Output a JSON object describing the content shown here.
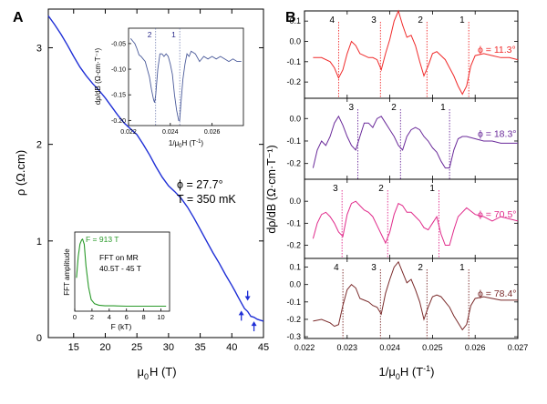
{
  "chart_data": [
    {
      "id": "A",
      "type": "line",
      "panel_letter": "A",
      "xlabel_base": "μ",
      "xlabel_sub": "0",
      "xlabel_rest": "H (T)",
      "ylabel": "ρ (Ω.cm)",
      "xlim": [
        11,
        45
      ],
      "ylim": [
        0,
        3.4
      ],
      "xticks": [
        15,
        20,
        25,
        30,
        35,
        40,
        45
      ],
      "yticks": [
        0,
        1,
        2,
        3
      ],
      "grid": false,
      "annotations": [
        "ϕ = 27.7°",
        "T = 350 mK"
      ],
      "series": [
        {
          "color": "#1f2fd6",
          "x": [
            11,
            12,
            13,
            14,
            15,
            16,
            17,
            18,
            19,
            20,
            21,
            22,
            23,
            24,
            25,
            26,
            27,
            28,
            29,
            30,
            31,
            32,
            33,
            34,
            35,
            36,
            37,
            38,
            39,
            40,
            40.5,
            41,
            41.5,
            42,
            42.5,
            43,
            43.5,
            44,
            44.5,
            45
          ],
          "y": [
            3.33,
            3.24,
            3.14,
            3.03,
            2.91,
            2.8,
            2.71,
            2.63,
            2.56,
            2.48,
            2.39,
            2.3,
            2.22,
            2.16,
            2.1,
            2.0,
            1.89,
            1.77,
            1.66,
            1.57,
            1.51,
            1.44,
            1.35,
            1.24,
            1.12,
            1.0,
            0.88,
            0.77,
            0.65,
            0.54,
            0.48,
            0.42,
            0.36,
            0.3,
            0.27,
            0.22,
            0.21,
            0.19,
            0.18,
            0.17
          ]
        }
      ],
      "arrows": [
        {
          "x": 41.5,
          "y": 0.26,
          "direction": "up"
        },
        {
          "x": 42.5,
          "y": 0.4,
          "direction": "down"
        },
        {
          "x": 43.5,
          "y": 0.15,
          "direction": "up"
        }
      ]
    },
    {
      "id": "A-inset-top",
      "type": "line",
      "xlabel_base": "1/μ",
      "xlabel_sub": "0",
      "xlabel_rest": "H (T",
      "xlabel_sup": "-1",
      "xlabel_tail": ")",
      "ylabel": "dρ/dB (Ω·cm·T⁻¹)",
      "xlim": [
        0.022,
        0.0275
      ],
      "ylim": [
        -0.21,
        -0.02
      ],
      "xticks": [
        "0.022",
        "0.024",
        "0.026"
      ],
      "yticks": [
        "-0.05",
        "-0.10",
        "-0.15",
        "-0.20"
      ],
      "ytick_values": [
        -0.05,
        -0.1,
        -0.15,
        -0.2
      ],
      "xtick_values": [
        0.022,
        0.024,
        0.026
      ],
      "series": [
        {
          "color": "#4a5a9a",
          "x": [
            0.0221,
            0.0222,
            0.0223,
            0.0224,
            0.0225,
            0.0226,
            0.0227,
            0.0228,
            0.0229,
            0.023,
            0.0231,
            0.0232,
            0.02325,
            0.0233,
            0.0234,
            0.0235,
            0.0236,
            0.0237,
            0.0238,
            0.0239,
            0.024,
            0.0241,
            0.0242,
            0.0243,
            0.0244,
            0.02445,
            0.0245,
            0.0246,
            0.0247,
            0.0248,
            0.0249,
            0.025,
            0.0252,
            0.0254,
            0.0256,
            0.0258,
            0.026,
            0.0262,
            0.0264,
            0.0266,
            0.0268,
            0.027,
            0.0272,
            0.0274
          ],
          "y": [
            -0.04,
            -0.045,
            -0.05,
            -0.06,
            -0.072,
            -0.075,
            -0.08,
            -0.085,
            -0.1,
            -0.115,
            -0.14,
            -0.16,
            -0.165,
            -0.15,
            -0.1,
            -0.07,
            -0.07,
            -0.075,
            -0.07,
            -0.075,
            -0.09,
            -0.11,
            -0.15,
            -0.18,
            -0.2,
            -0.2,
            -0.17,
            -0.12,
            -0.09,
            -0.07,
            -0.075,
            -0.065,
            -0.07,
            -0.085,
            -0.075,
            -0.08,
            -0.075,
            -0.08,
            -0.075,
            -0.08,
            -0.085,
            -0.08,
            -0.085,
            -0.085
          ]
        }
      ],
      "markers": [
        {
          "label": "2",
          "x": 0.0233
        },
        {
          "label": "1",
          "x": 0.02445
        }
      ]
    },
    {
      "id": "A-inset-bottom",
      "type": "line",
      "xlabel": "F (kT)",
      "ylabel": "FFT amplitude",
      "xlim": [
        0,
        11
      ],
      "xticks": [
        "0",
        "2",
        "4",
        "6",
        "8",
        "10"
      ],
      "xtick_values": [
        0,
        2,
        4,
        6,
        8,
        10
      ],
      "annotations": [
        "F = 913 T",
        "FFT on MR",
        "40.5T - 45 T"
      ],
      "series": [
        {
          "color": "#2a9a2a",
          "x": [
            0.2,
            0.4,
            0.6,
            0.8,
            0.913,
            1.1,
            1.3,
            1.6,
            1.9,
            2.3,
            2.8,
            3.5,
            4.5,
            6,
            8,
            10,
            10.6
          ],
          "y": [
            0.45,
            0.75,
            0.93,
            0.99,
            1.0,
            0.93,
            0.62,
            0.32,
            0.14,
            0.08,
            0.06,
            0.05,
            0.05,
            0.045,
            0.045,
            0.045,
            0.045
          ]
        }
      ]
    },
    {
      "id": "B",
      "type": "line",
      "panel_letter": "B",
      "xlabel_base": "1/μ",
      "xlabel_sub": "0",
      "xlabel_rest": "H (T",
      "xlabel_sup": "-1",
      "xlabel_tail": ")",
      "ylabel": "dρ/dB (Ω·cm·T⁻¹)",
      "xlim": [
        0.022,
        0.027
      ],
      "xticks": [
        "0.022",
        "0.023",
        "0.024",
        "0.025",
        "0.026",
        "0.027"
      ],
      "xtick_values": [
        0.022,
        0.023,
        0.024,
        0.025,
        0.026,
        0.027
      ],
      "subplots": [
        {
          "annotation": "ϕ = 11.3°",
          "color": "#f02a2a",
          "ylim": [
            -0.28,
            0.15
          ],
          "yticks": [
            "0.1",
            "0.0",
            "-0.1",
            "-0.2"
          ],
          "ytick_values": [
            0.1,
            0.0,
            -0.1,
            -0.2
          ],
          "markers": [
            {
              "label": "4",
              "x": 0.0228
            },
            {
              "label": "3",
              "x": 0.02378
            },
            {
              "label": "2",
              "x": 0.02487
            },
            {
              "label": "1",
              "x": 0.02585
            }
          ],
          "x": [
            0.0222,
            0.0224,
            0.0226,
            0.0227,
            0.0228,
            0.0229,
            0.023,
            0.0231,
            0.0232,
            0.0233,
            0.0234,
            0.0235,
            0.0236,
            0.0237,
            0.0238,
            0.0239,
            0.024,
            0.0241,
            0.0242,
            0.0243,
            0.0244,
            0.0245,
            0.0246,
            0.0247,
            0.0248,
            0.0249,
            0.025,
            0.0251,
            0.0252,
            0.0253,
            0.0254,
            0.0255,
            0.0256,
            0.0257,
            0.0258,
            0.0259,
            0.026,
            0.0262,
            0.0264,
            0.0266,
            0.0268,
            0.027
          ],
          "y": [
            -0.08,
            -0.08,
            -0.1,
            -0.13,
            -0.18,
            -0.14,
            -0.06,
            0.0,
            -0.02,
            -0.06,
            -0.07,
            -0.08,
            -0.08,
            -0.09,
            -0.14,
            -0.06,
            0.01,
            0.1,
            0.15,
            0.08,
            0.02,
            0.03,
            -0.02,
            -0.1,
            -0.17,
            -0.12,
            -0.06,
            -0.05,
            -0.07,
            -0.09,
            -0.13,
            -0.17,
            -0.22,
            -0.26,
            -0.22,
            -0.12,
            -0.07,
            -0.06,
            -0.07,
            -0.08,
            -0.08,
            -0.09
          ]
        },
        {
          "annotation": "ϕ = 18.3°",
          "color": "#6a2a9a",
          "ylim": [
            -0.27,
            0.09
          ],
          "yticks": [
            "0.0",
            "-0.1",
            "-0.2"
          ],
          "ytick_values": [
            0.0,
            -0.1,
            -0.2
          ],
          "markers": [
            {
              "label": "3",
              "x": 0.02325
            },
            {
              "label": "2",
              "x": 0.02425
            },
            {
              "label": "1",
              "x": 0.0254
            }
          ],
          "x": [
            0.0222,
            0.0223,
            0.0224,
            0.0225,
            0.0226,
            0.0227,
            0.0228,
            0.0229,
            0.023,
            0.0231,
            0.0232,
            0.0233,
            0.0234,
            0.0235,
            0.0236,
            0.0237,
            0.0238,
            0.0239,
            0.024,
            0.0241,
            0.0242,
            0.0243,
            0.0244,
            0.0245,
            0.0246,
            0.0247,
            0.0248,
            0.0249,
            0.025,
            0.0251,
            0.0252,
            0.0253,
            0.0254,
            0.0255,
            0.0256,
            0.0257,
            0.0258,
            0.026,
            0.0262,
            0.0264,
            0.0266,
            0.027
          ],
          "y": [
            -0.22,
            -0.14,
            -0.1,
            -0.12,
            -0.08,
            -0.02,
            0.01,
            -0.03,
            -0.08,
            -0.12,
            -0.14,
            -0.08,
            -0.02,
            -0.02,
            -0.04,
            0.0,
            0.01,
            -0.02,
            -0.05,
            -0.08,
            -0.12,
            -0.14,
            -0.08,
            -0.05,
            -0.04,
            -0.05,
            -0.08,
            -0.1,
            -0.13,
            -0.15,
            -0.19,
            -0.22,
            -0.22,
            -0.14,
            -0.09,
            -0.08,
            -0.08,
            -0.09,
            -0.1,
            -0.1,
            -0.11,
            -0.11
          ]
        },
        {
          "annotation": "ϕ = 70.5°",
          "color": "#e02a8a",
          "ylim": [
            -0.26,
            0.1
          ],
          "yticks": [
            "0.0",
            "-0.1",
            "-0.2"
          ],
          "ytick_values": [
            0.0,
            -0.1,
            -0.2
          ],
          "markers": [
            {
              "label": "3",
              "x": 0.02288
            },
            {
              "label": "2",
              "x": 0.02395
            },
            {
              "label": "1",
              "x": 0.02515
            }
          ],
          "x": [
            0.0222,
            0.0223,
            0.0224,
            0.0225,
            0.0226,
            0.0227,
            0.0228,
            0.0229,
            0.023,
            0.0231,
            0.0232,
            0.0233,
            0.0234,
            0.0235,
            0.0236,
            0.0237,
            0.0238,
            0.0239,
            0.024,
            0.0241,
            0.0242,
            0.0243,
            0.0244,
            0.0245,
            0.0246,
            0.0247,
            0.0248,
            0.0249,
            0.025,
            0.0251,
            0.0252,
            0.0253,
            0.0254,
            0.0255,
            0.0256,
            0.0258,
            0.026,
            0.0262,
            0.0264,
            0.0266,
            0.027
          ],
          "y": [
            -0.17,
            -0.1,
            -0.06,
            -0.05,
            -0.07,
            -0.1,
            -0.14,
            -0.16,
            -0.06,
            -0.01,
            0.0,
            -0.02,
            -0.04,
            -0.05,
            -0.07,
            -0.11,
            -0.15,
            -0.19,
            -0.14,
            -0.06,
            -0.01,
            -0.02,
            -0.05,
            -0.05,
            -0.07,
            -0.09,
            -0.12,
            -0.13,
            -0.1,
            -0.07,
            -0.15,
            -0.2,
            -0.2,
            -0.13,
            -0.07,
            -0.03,
            -0.06,
            -0.07,
            -0.09,
            -0.07,
            -0.09
          ]
        },
        {
          "annotation": "ϕ = 78.4°",
          "color": "#7a2a2a",
          "ylim": [
            -0.31,
            0.15
          ],
          "yticks": [
            "0.1",
            "0.0",
            "-0.1",
            "-0.2",
            "-0.3"
          ],
          "ytick_values": [
            0.1,
            0.0,
            -0.1,
            -0.2,
            -0.3
          ],
          "markers": [
            {
              "label": "4",
              "x": 0.0229
            },
            {
              "label": "3",
              "x": 0.02378
            },
            {
              "label": "2",
              "x": 0.02487
            },
            {
              "label": "1",
              "x": 0.02585
            }
          ],
          "x": [
            0.0222,
            0.0224,
            0.0226,
            0.0227,
            0.0228,
            0.0229,
            0.023,
            0.0231,
            0.0232,
            0.0233,
            0.0234,
            0.0235,
            0.0236,
            0.0237,
            0.0238,
            0.0239,
            0.024,
            0.0241,
            0.0242,
            0.0243,
            0.0244,
            0.0245,
            0.0246,
            0.0247,
            0.0248,
            0.0249,
            0.025,
            0.0251,
            0.0252,
            0.0253,
            0.0254,
            0.0255,
            0.0256,
            0.0257,
            0.0258,
            0.0259,
            0.026,
            0.0262,
            0.0264,
            0.0266,
            0.0268,
            0.027
          ],
          "y": [
            -0.21,
            -0.2,
            -0.22,
            -0.24,
            -0.23,
            -0.12,
            -0.03,
            0.0,
            -0.02,
            -0.08,
            -0.09,
            -0.1,
            -0.12,
            -0.13,
            -0.17,
            -0.05,
            0.03,
            0.1,
            0.13,
            0.07,
            0.01,
            0.03,
            -0.03,
            -0.1,
            -0.2,
            -0.13,
            -0.07,
            -0.06,
            -0.07,
            -0.1,
            -0.13,
            -0.18,
            -0.22,
            -0.26,
            -0.23,
            -0.12,
            -0.08,
            -0.07,
            -0.08,
            -0.09,
            -0.09,
            -0.09
          ]
        }
      ]
    }
  ]
}
